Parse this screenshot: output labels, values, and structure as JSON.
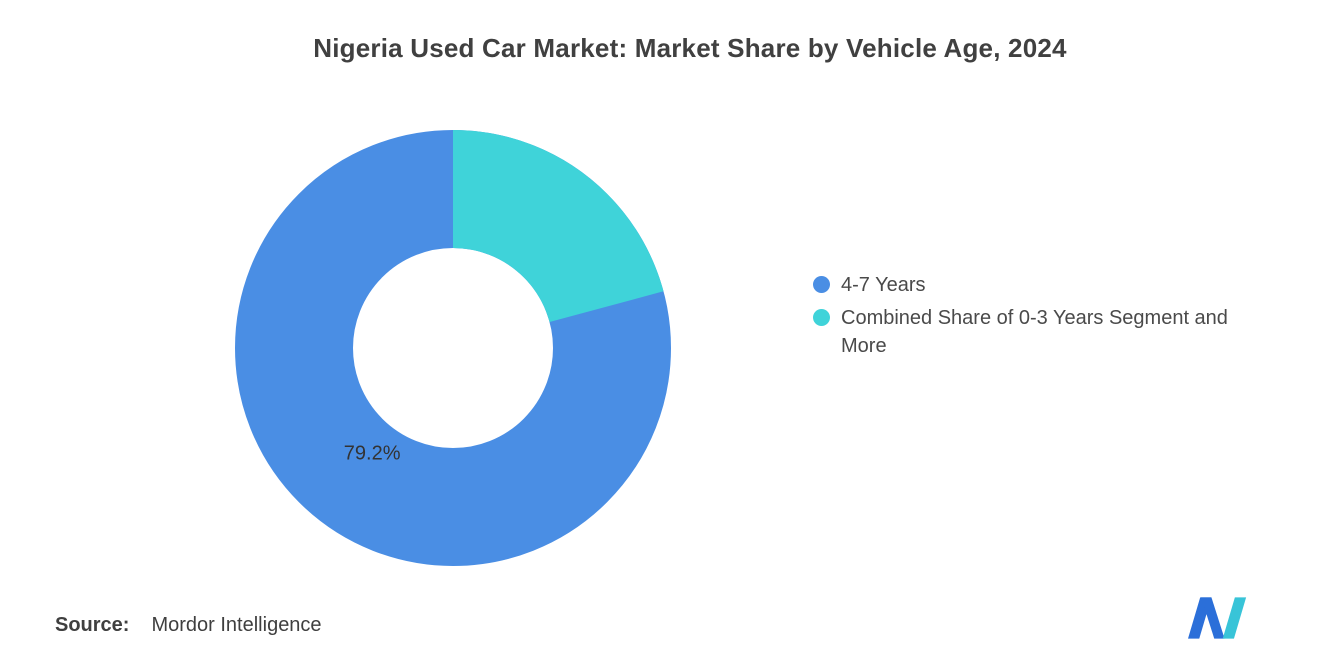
{
  "title": "Nigeria Used Car Market: Market Share by Vehicle Age, 2024",
  "chart_data": {
    "type": "pie",
    "subtype": "donut",
    "title": "Nigeria Used Car Market: Market Share by Vehicle Age, 2024",
    "legend_position": "right",
    "start_angle_deg": 0,
    "slices": [
      {
        "label": "4-7 Years",
        "value": 79.2,
        "color": "#4A8EE4",
        "data_label": "79.2%"
      },
      {
        "label": "Combined Share of 0-3 Years Segment and More",
        "value": 20.8,
        "color": "#3FD3D9",
        "data_label": ""
      }
    ]
  },
  "source": {
    "prefix": "Source:",
    "text": "Mordor Intelligence"
  },
  "logo": {
    "name": "mordor-intelligence-logo",
    "blue": "#2B6FD9",
    "teal": "#38C4D8"
  }
}
